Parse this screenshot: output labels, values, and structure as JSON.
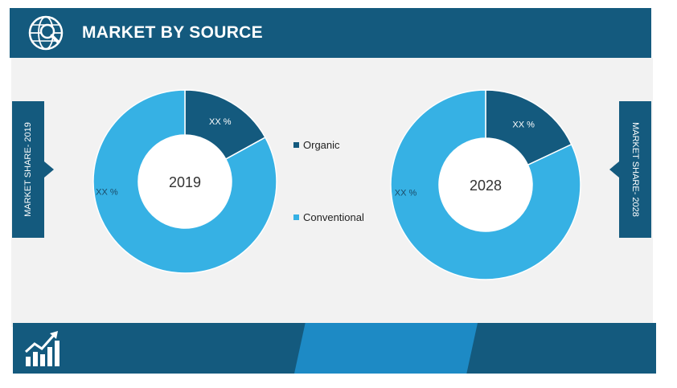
{
  "header": {
    "title": "MARKET BY SOURCE",
    "icon": "globe-search-icon"
  },
  "side_labels": {
    "left": "MARKET SHARE- 2019",
    "right": "MARKET SHARE- 2028"
  },
  "footer": {
    "icon": "growth-chart-icon"
  },
  "colors": {
    "organic": "#145a7e",
    "conventional": "#36b1e4",
    "header": "#145a7e",
    "accent": "#1d8ac5"
  },
  "chart_data": [
    {
      "type": "pie",
      "center_label": "2019",
      "categories": [
        "Organic",
        "Conventional"
      ],
      "values": [
        17,
        83
      ],
      "data_labels": [
        "XX %",
        "XX %"
      ]
    },
    {
      "type": "pie",
      "center_label": "2028",
      "categories": [
        "Organic",
        "Conventional"
      ],
      "values": [
        18,
        82
      ],
      "data_labels": [
        "XX %",
        "XX %"
      ]
    }
  ],
  "legend": {
    "placement": "center",
    "items": [
      "Organic",
      "Conventional"
    ]
  }
}
